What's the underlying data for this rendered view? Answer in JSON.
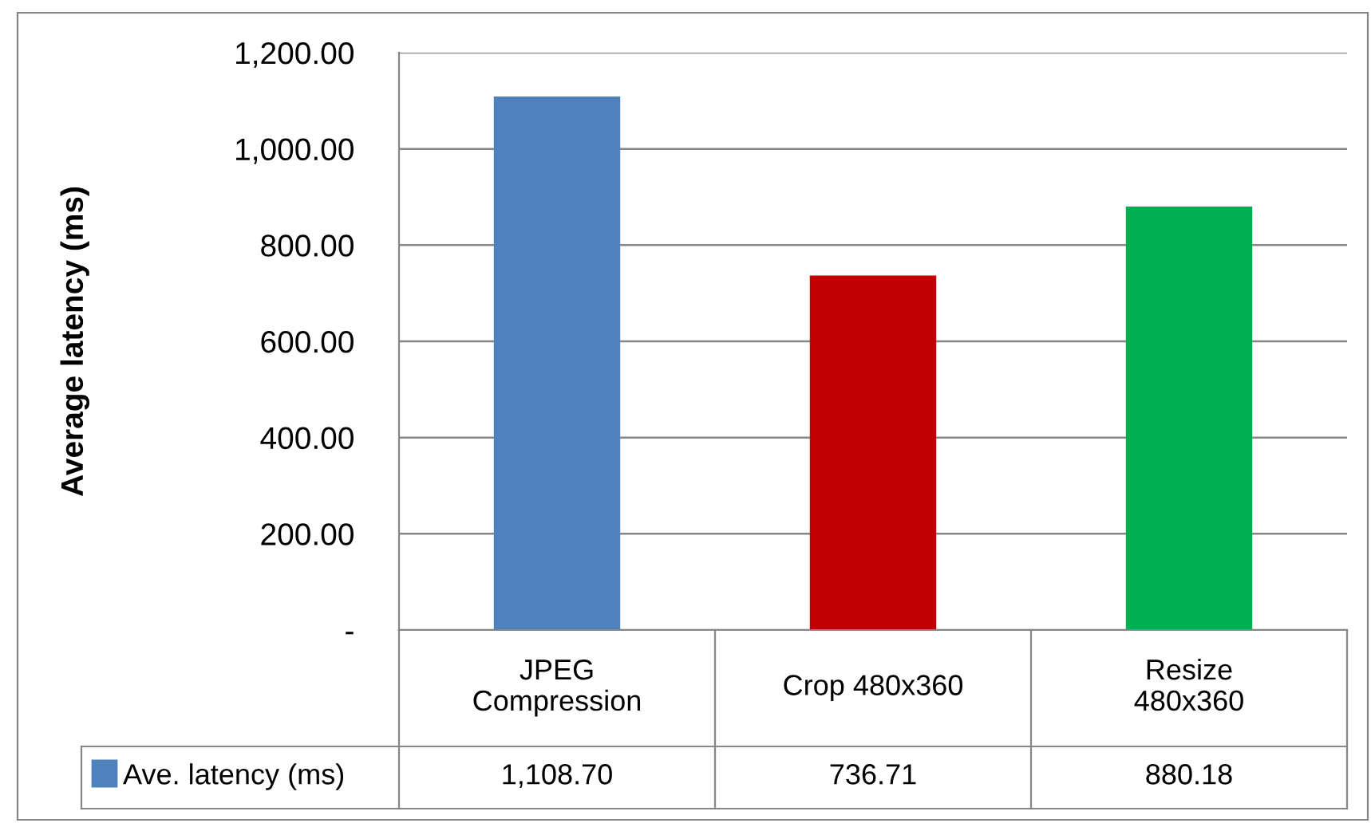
{
  "chart_data": {
    "type": "bar",
    "ylabel": "Average latency (ms)",
    "categories": [
      "JPEG\nCompression",
      "Crop 480x360",
      "Resize\n480x360"
    ],
    "series": [
      {
        "name": "Ave. latency (ms)",
        "color": "#4f81bd",
        "colors": [
          "#4f81bd",
          "#c00000",
          "#00b050"
        ],
        "values": [
          1108.7,
          736.71,
          880.18
        ],
        "value_labels": [
          "1,108.70",
          "736.71",
          "880.18"
        ]
      }
    ],
    "ylim": [
      0,
      1200
    ],
    "yticks": [
      {
        "value": 0,
        "label": "-"
      },
      {
        "value": 200,
        "label": "200.00"
      },
      {
        "value": 400,
        "label": "400.00"
      },
      {
        "value": 600,
        "label": "600.00"
      },
      {
        "value": 800,
        "label": "800.00"
      },
      {
        "value": 1000,
        "label": "1,000.00"
      },
      {
        "value": 1200,
        "label": "1,200.00"
      }
    ],
    "grid": "y",
    "legend": "bottom left"
  }
}
